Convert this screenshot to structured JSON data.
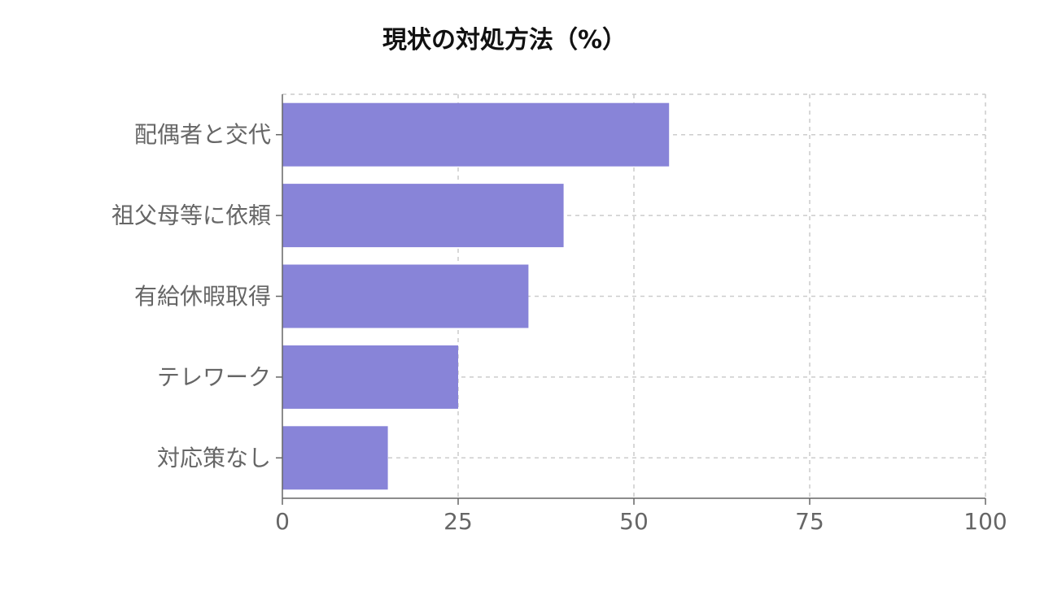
{
  "chart_data": {
    "type": "bar",
    "orientation": "horizontal",
    "title": "現状の対処方法（%）",
    "categories": [
      "配偶者と交代",
      "祖父母等に依頼",
      "有給休暇取得",
      "テレワーク",
      "対応策なし"
    ],
    "values": [
      55,
      40,
      35,
      25,
      15
    ],
    "xlim": [
      0,
      100
    ],
    "x_ticks": [
      0,
      25,
      50,
      75,
      100
    ],
    "xlabel": "",
    "ylabel": "",
    "grid": true,
    "bar_color": "#8884d8"
  }
}
